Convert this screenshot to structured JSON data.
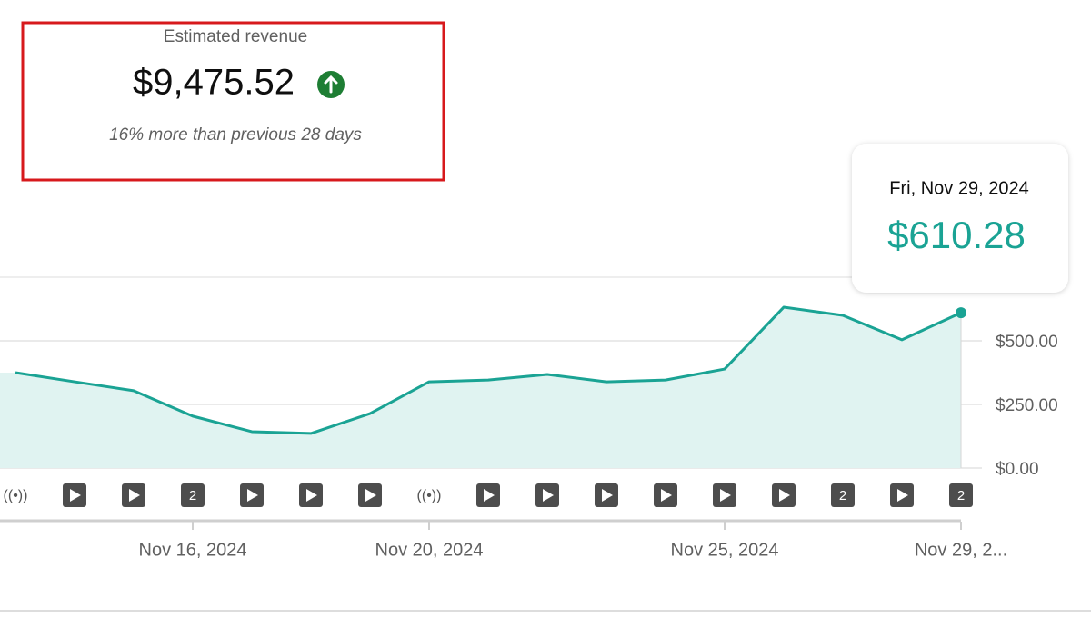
{
  "summary": {
    "label": "Estimated revenue",
    "total": "$9,475.52",
    "comparison": "16% more than previous 28 days"
  },
  "tooltip": {
    "date": "Fri, Nov 29, 2024",
    "value": "$610.28"
  },
  "chart_data": {
    "type": "line",
    "x": [
      "Nov 13, 2024",
      "Nov 14, 2024",
      "Nov 15, 2024",
      "Nov 16, 2024",
      "Nov 17, 2024",
      "Nov 18, 2024",
      "Nov 19, 2024",
      "Nov 20, 2024",
      "Nov 21, 2024",
      "Nov 22, 2024",
      "Nov 23, 2024",
      "Nov 24, 2024",
      "Nov 25, 2024",
      "Nov 26, 2024",
      "Nov 27, 2024",
      "Nov 28, 2024",
      "Nov 29, 2024"
    ],
    "series": [
      {
        "color": "#1aa394",
        "values": [
          375,
          339,
          304,
          204,
          143,
          136,
          214,
          339,
          346,
          368,
          339,
          346,
          389,
          632,
          600,
          504,
          610.28
        ]
      }
    ],
    "markers": [
      "((•))",
      null,
      null,
      "2",
      null,
      null,
      null,
      "((•))",
      null,
      null,
      null,
      null,
      null,
      null,
      "2",
      null,
      "2"
    ],
    "ylim": [
      0,
      750
    ],
    "yticks": [
      {
        "value": 0,
        "label": "$0.00"
      },
      {
        "value": 250,
        "label": "$250.00"
      },
      {
        "value": 500,
        "label": "$500.00"
      }
    ],
    "xticks": [
      "Nov 16, 2024",
      "Nov 20, 2024",
      "Nov 25, 2024",
      {
        "value": "Nov 29, 2024",
        "label": "Nov 29, 2..."
      }
    ],
    "grid": true
  }
}
